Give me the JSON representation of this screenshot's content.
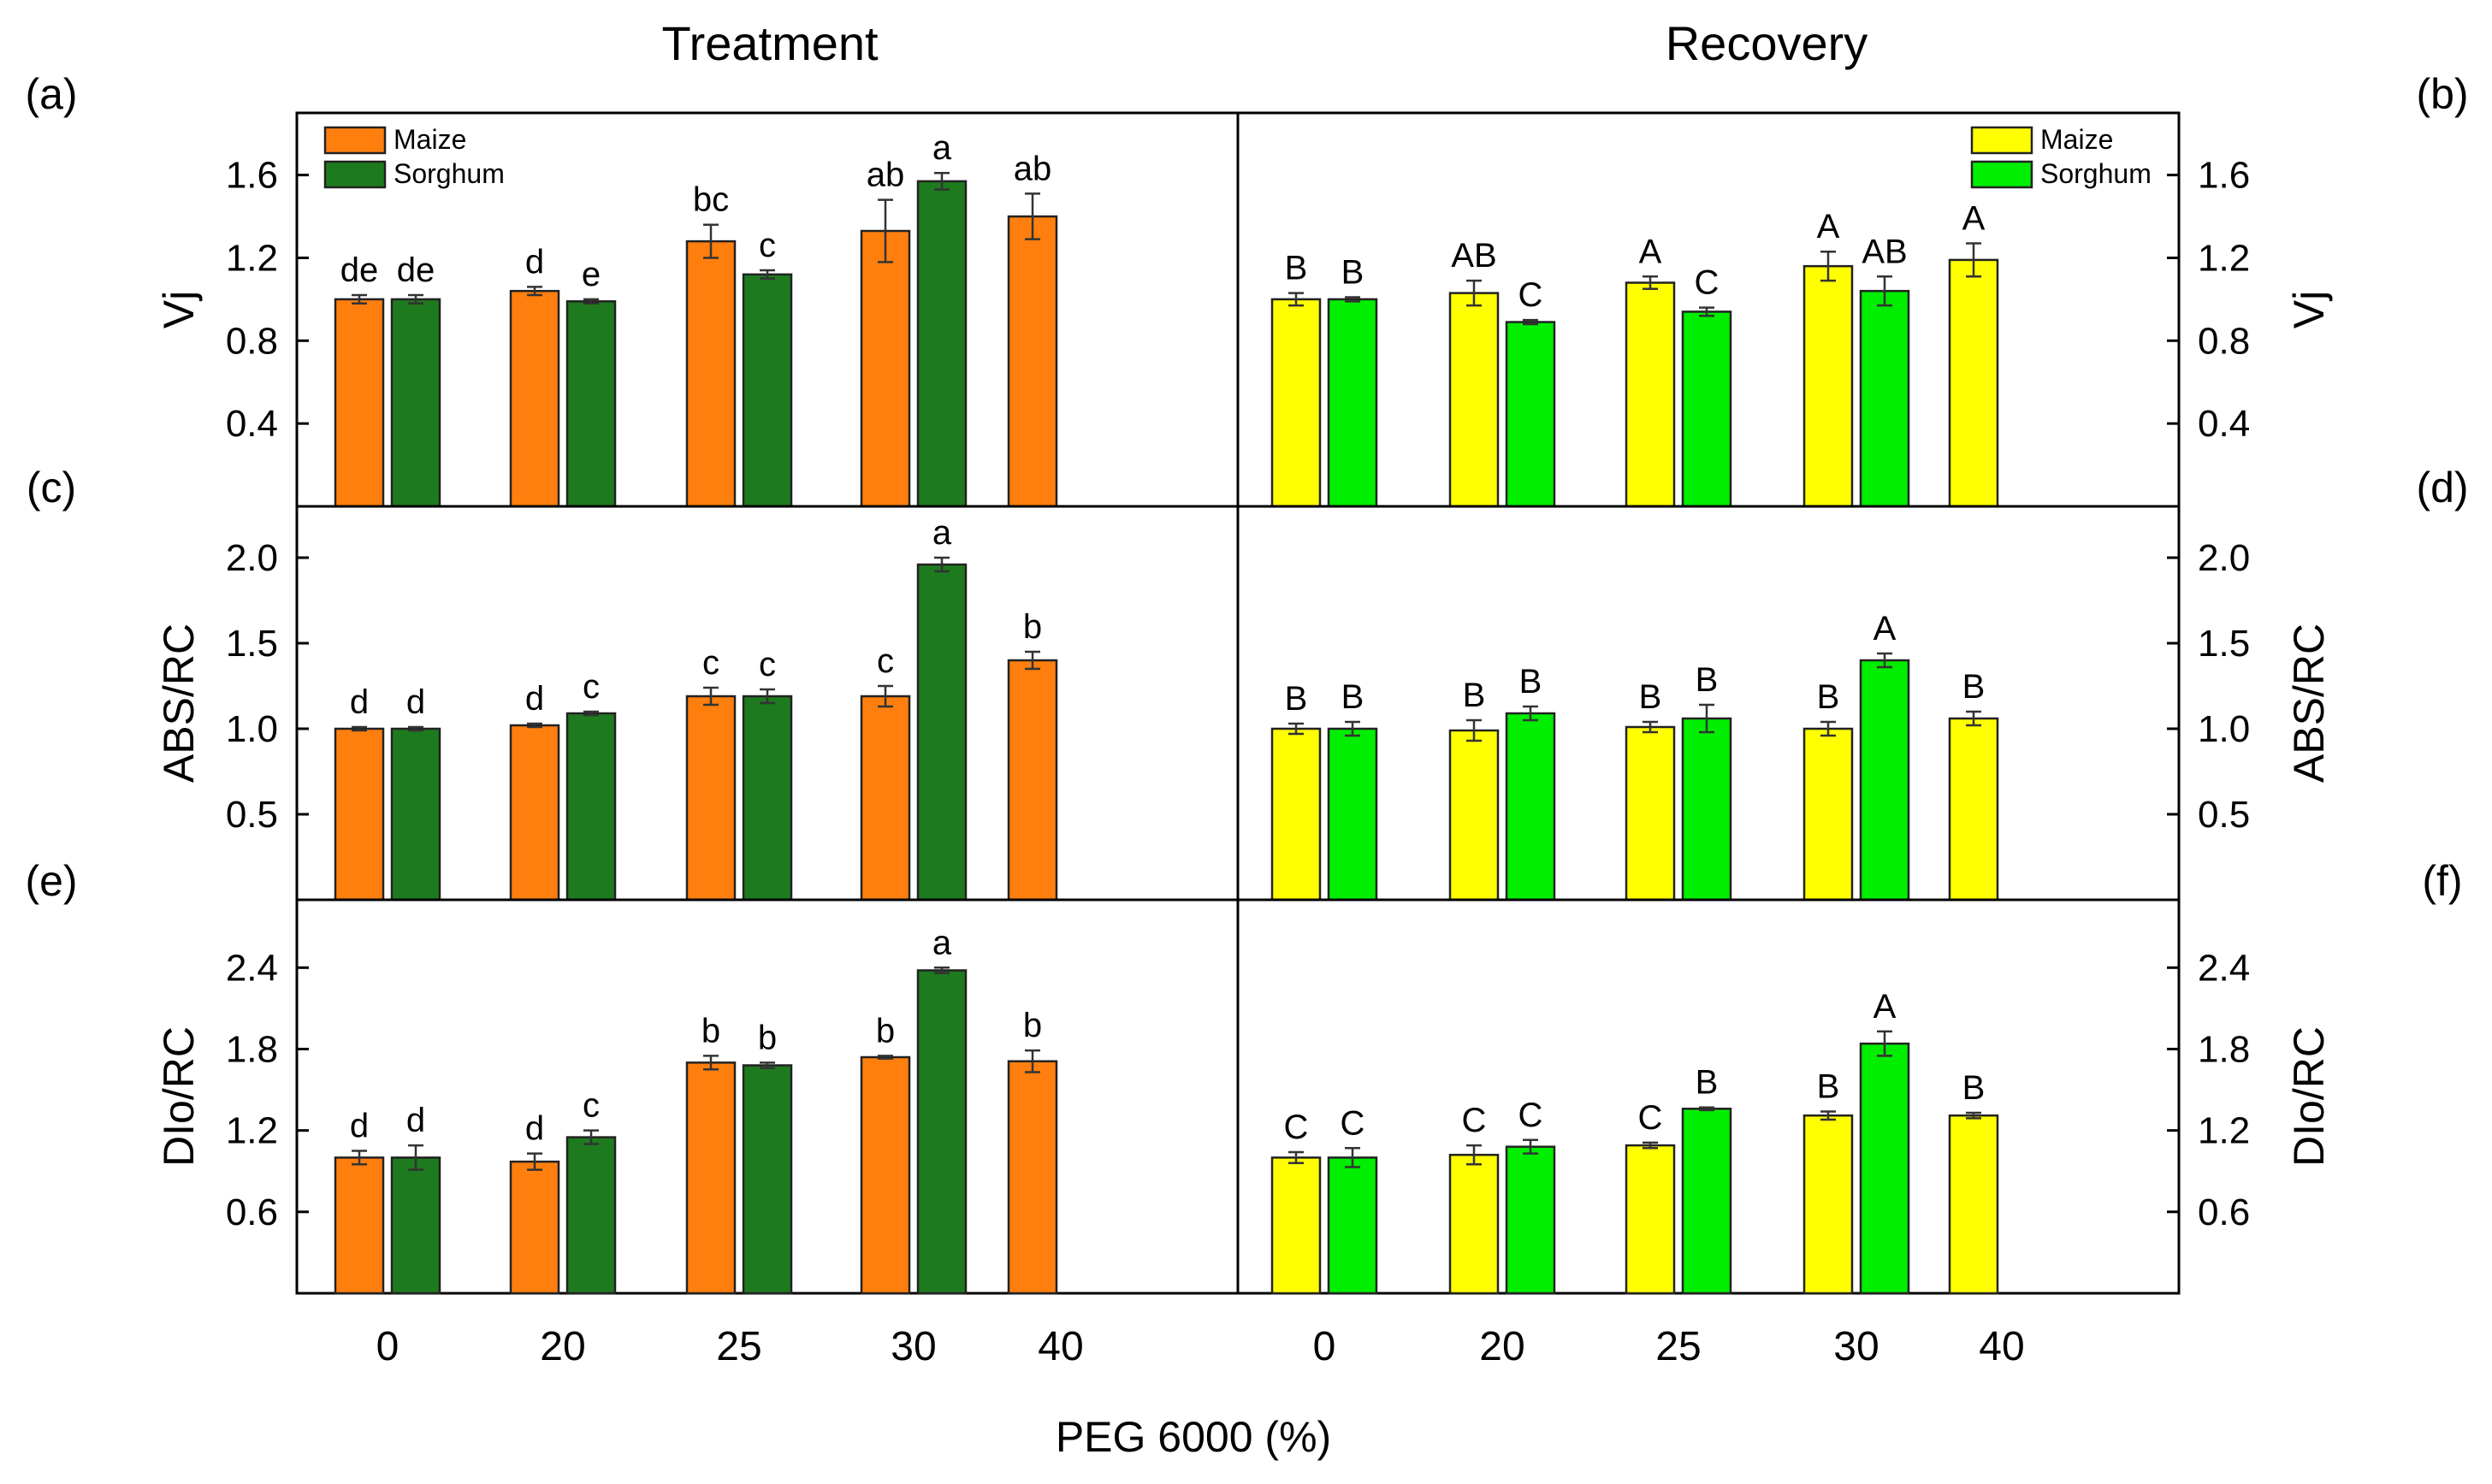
{
  "figure": {
    "col_titles": [
      "Treatment",
      "Recovery"
    ],
    "xlabel": "PEG 6000 (%)",
    "x_ticks": [
      "0",
      "20",
      "25",
      "30",
      "40"
    ]
  },
  "colors": {
    "maize_treatment": "#FF7F0E",
    "sorghum_treatment": "#1E7A1E",
    "maize_recovery": "#FFFF00",
    "sorghum_recovery": "#00EE00"
  },
  "chart_data": [
    {
      "panel": "(a)",
      "type": "bar",
      "ylabel": "Vj",
      "ylim": [
        0,
        1.9
      ],
      "yticks": [
        "0.4",
        "0.8",
        "1.2",
        "1.6"
      ],
      "categories": [
        "0",
        "20",
        "25",
        "30",
        "40"
      ],
      "legend": [
        "Maize",
        "Sorghum"
      ],
      "series": [
        {
          "name": "Maize",
          "values": [
            1.0,
            1.04,
            1.28,
            1.33,
            1.4
          ],
          "errors": [
            0.02,
            0.02,
            0.08,
            0.15,
            0.11
          ],
          "labels": [
            "de",
            "d",
            "bc",
            "ab",
            "ab"
          ]
        },
        {
          "name": "Sorghum",
          "values": [
            1.0,
            0.99,
            1.12,
            1.57,
            null
          ],
          "errors": [
            0.02,
            0.01,
            0.02,
            0.04,
            null
          ],
          "labels": [
            "de",
            "e",
            "c",
            "a",
            ""
          ]
        }
      ]
    },
    {
      "panel": "(b)",
      "type": "bar",
      "ylabel": "Vj",
      "ylim": [
        0,
        1.9
      ],
      "yticks": [
        "0.4",
        "0.8",
        "1.2",
        "1.6"
      ],
      "categories": [
        "0",
        "20",
        "25",
        "30",
        "40"
      ],
      "legend": [
        "Maize",
        "Sorghum"
      ],
      "series": [
        {
          "name": "Maize",
          "values": [
            1.0,
            1.03,
            1.08,
            1.16,
            1.19
          ],
          "errors": [
            0.03,
            0.06,
            0.03,
            0.07,
            0.08
          ],
          "labels": [
            "B",
            "AB",
            "A",
            "A",
            "A"
          ]
        },
        {
          "name": "Sorghum",
          "values": [
            1.0,
            0.89,
            0.94,
            1.04,
            null
          ],
          "errors": [
            0.01,
            0.01,
            0.02,
            0.07,
            null
          ],
          "labels": [
            "B",
            "C",
            "C",
            "AB",
            ""
          ]
        }
      ]
    },
    {
      "panel": "(c)",
      "type": "bar",
      "ylabel": "ABS/RC",
      "ylim": [
        0,
        2.3
      ],
      "yticks": [
        "0.5",
        "1.0",
        "1.5",
        "2.0"
      ],
      "categories": [
        "0",
        "20",
        "25",
        "30",
        "40"
      ],
      "series": [
        {
          "name": "Maize",
          "values": [
            1.0,
            1.02,
            1.19,
            1.19,
            1.4
          ],
          "errors": [
            0.01,
            0.01,
            0.05,
            0.06,
            0.05
          ],
          "labels": [
            "d",
            "d",
            "c",
            "c",
            "b"
          ]
        },
        {
          "name": "Sorghum",
          "values": [
            1.0,
            1.09,
            1.19,
            1.96,
            null
          ],
          "errors": [
            0.01,
            0.01,
            0.04,
            0.04,
            null
          ],
          "labels": [
            "d",
            "c",
            "c",
            "a",
            ""
          ]
        }
      ]
    },
    {
      "panel": "(d)",
      "type": "bar",
      "ylabel": "ABS/RC",
      "ylim": [
        0,
        2.3
      ],
      "yticks": [
        "0.5",
        "1.0",
        "1.5",
        "2.0"
      ],
      "categories": [
        "0",
        "20",
        "25",
        "30",
        "40"
      ],
      "series": [
        {
          "name": "Maize",
          "values": [
            1.0,
            0.99,
            1.01,
            1.0,
            1.06
          ],
          "errors": [
            0.03,
            0.06,
            0.03,
            0.04,
            0.04
          ],
          "labels": [
            "B",
            "B",
            "B",
            "B",
            "B"
          ]
        },
        {
          "name": "Sorghum",
          "values": [
            1.0,
            1.09,
            1.06,
            1.4,
            null
          ],
          "errors": [
            0.04,
            0.04,
            0.08,
            0.04,
            null
          ],
          "labels": [
            "B",
            "B",
            "B",
            "A",
            ""
          ]
        }
      ]
    },
    {
      "panel": "(e)",
      "type": "bar",
      "ylabel": "DIo/RC",
      "ylim": [
        0,
        2.9
      ],
      "yticks": [
        "0.6",
        "1.2",
        "1.8",
        "2.4"
      ],
      "categories": [
        "0",
        "20",
        "25",
        "30",
        "40"
      ],
      "series": [
        {
          "name": "Maize",
          "values": [
            1.0,
            0.97,
            1.7,
            1.74,
            1.71
          ],
          "errors": [
            0.05,
            0.06,
            0.05,
            0.01,
            0.08
          ],
          "labels": [
            "d",
            "d",
            "b",
            "b",
            "b"
          ]
        },
        {
          "name": "Sorghum",
          "values": [
            1.0,
            1.15,
            1.68,
            2.38,
            null
          ],
          "errors": [
            0.09,
            0.05,
            0.02,
            0.02,
            null
          ],
          "labels": [
            "d",
            "c",
            "b",
            "a",
            ""
          ]
        }
      ]
    },
    {
      "panel": "(f)",
      "type": "bar",
      "ylabel": "DIo/RC",
      "ylim": [
        0,
        2.9
      ],
      "yticks": [
        "0.6",
        "1.2",
        "1.8",
        "2.4"
      ],
      "categories": [
        "0",
        "20",
        "25",
        "30",
        "40"
      ],
      "series": [
        {
          "name": "Maize",
          "values": [
            1.0,
            1.02,
            1.09,
            1.31,
            1.31
          ],
          "errors": [
            0.04,
            0.07,
            0.02,
            0.03,
            0.02
          ],
          "labels": [
            "C",
            "C",
            "C",
            "B",
            "B"
          ]
        },
        {
          "name": "Sorghum",
          "values": [
            1.0,
            1.08,
            1.36,
            1.84,
            null
          ],
          "errors": [
            0.07,
            0.05,
            0.01,
            0.09,
            null
          ],
          "labels": [
            "C",
            "C",
            "B",
            "A",
            ""
          ]
        }
      ]
    }
  ]
}
